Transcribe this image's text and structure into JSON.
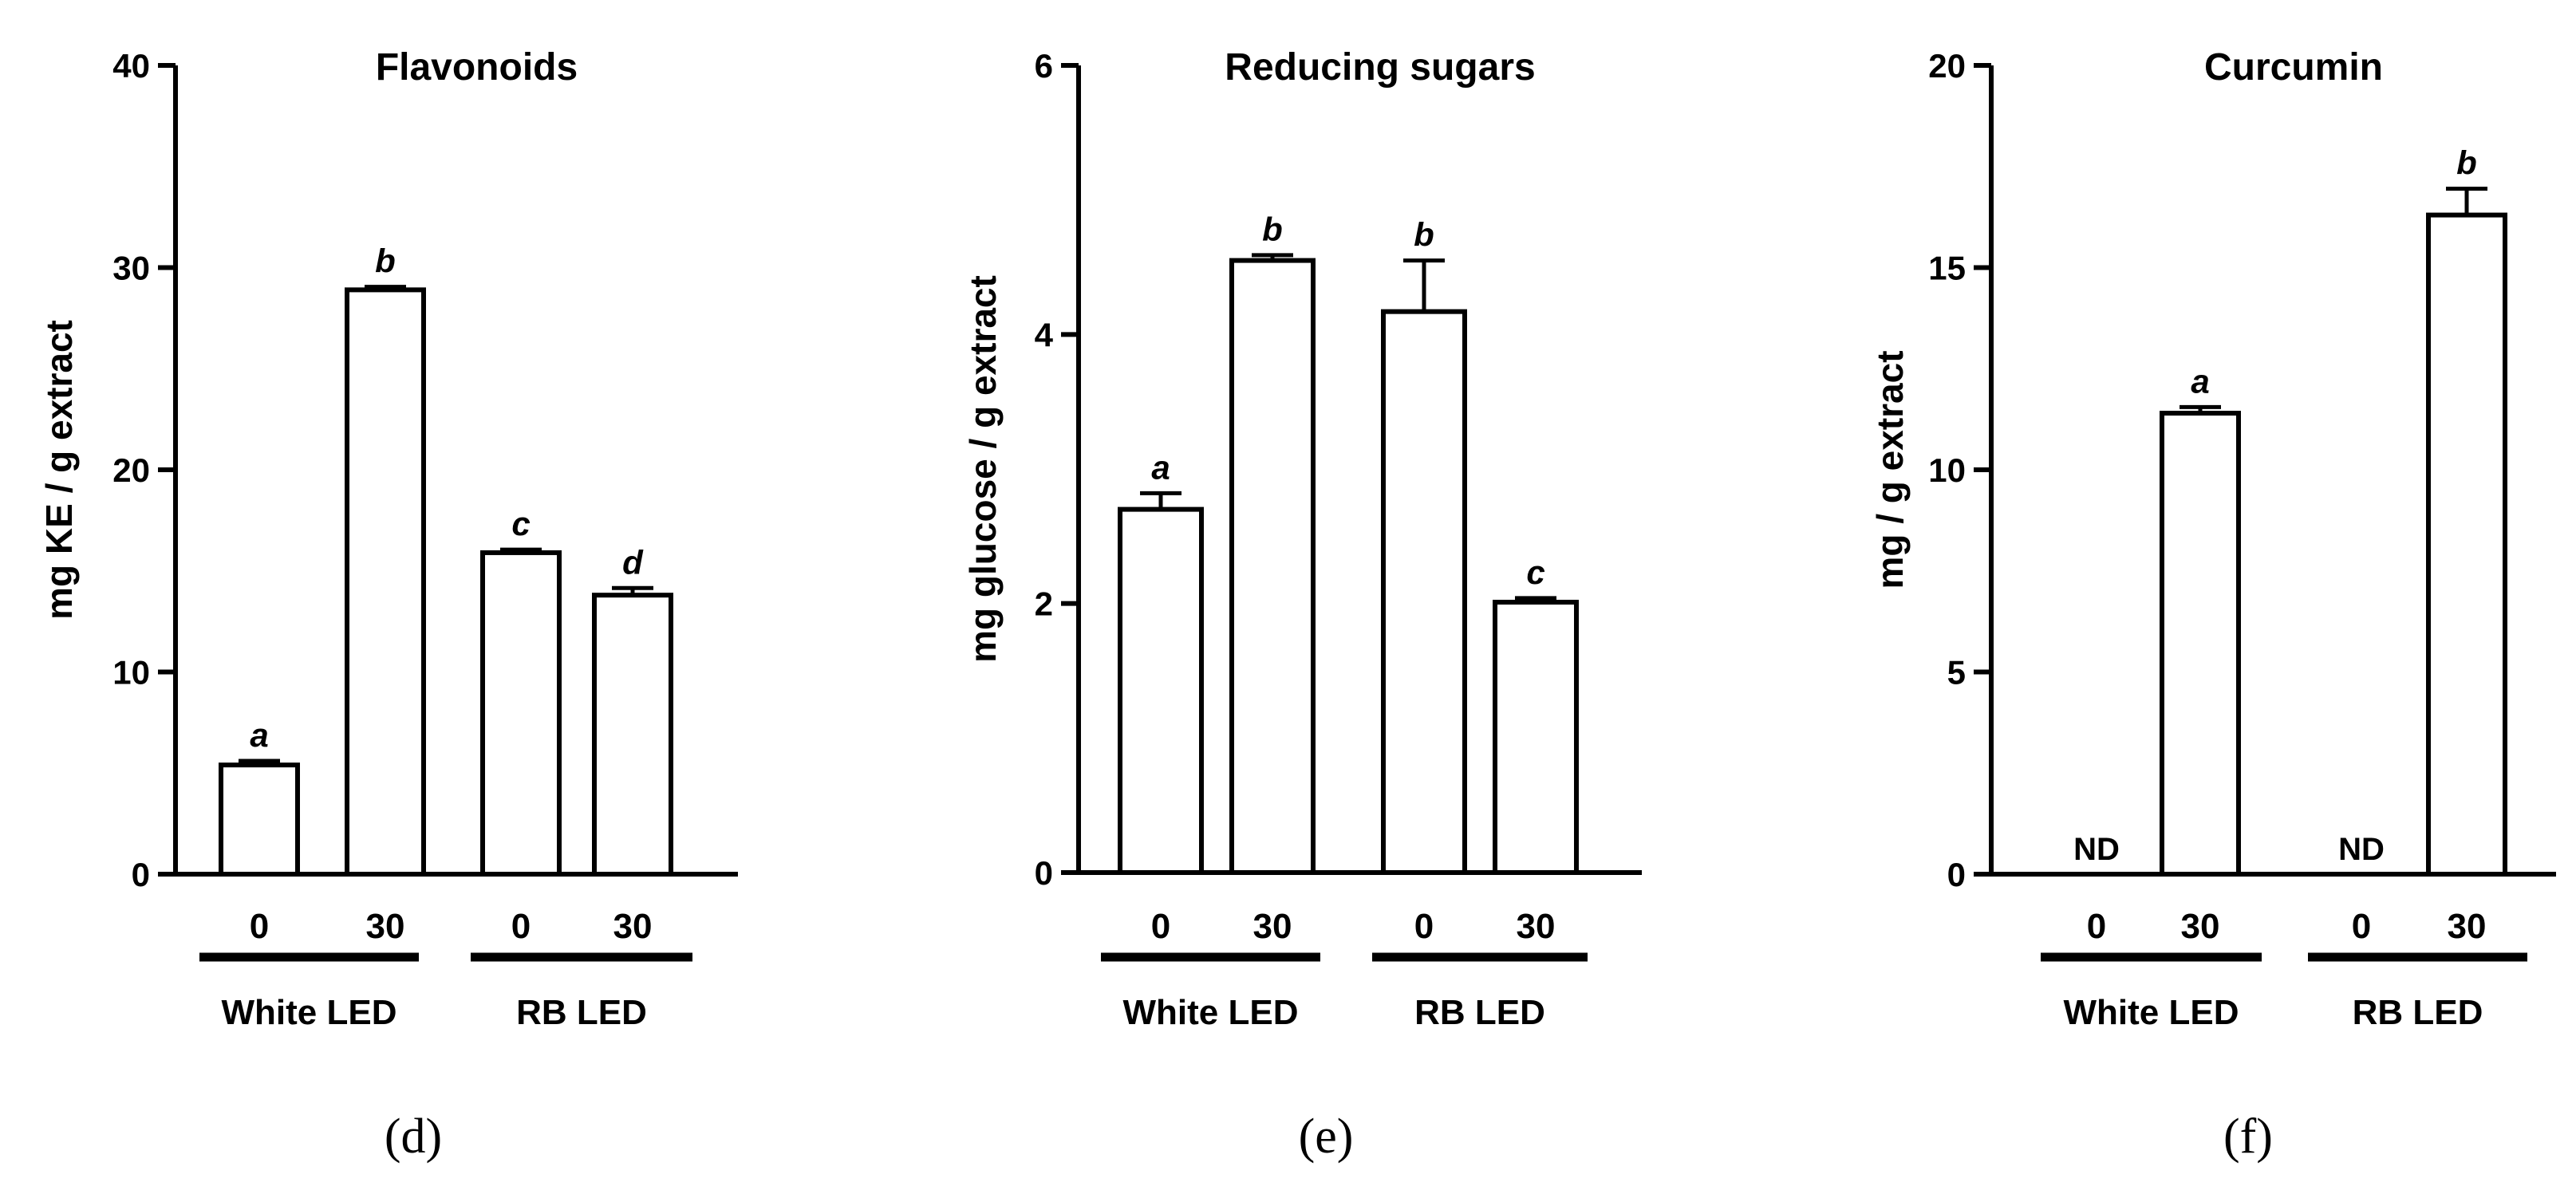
{
  "chart_data": [
    {
      "type": "bar",
      "title": "Flavonoids",
      "ylabel": "mg KE / g extract",
      "ylim": [
        0,
        40
      ],
      "yticks": [
        0,
        10,
        20,
        30,
        40
      ],
      "panel_label": "(d)",
      "categories": [
        "0",
        "30",
        "0",
        "30"
      ],
      "groups": [
        {
          "name": "White LED",
          "bars": [
            0,
            1
          ]
        },
        {
          "name": "RB LED",
          "bars": [
            2,
            3
          ]
        }
      ],
      "values": [
        5.4,
        28.9,
        15.9,
        13.8
      ],
      "errors": [
        0.2,
        0.15,
        0.15,
        0.35
      ],
      "letters": [
        "a",
        "b",
        "c",
        "d"
      ]
    },
    {
      "type": "bar",
      "title": "Reducing sugars",
      "ylabel": "mg glucose / g extract",
      "ylim": [
        0,
        6
      ],
      "yticks": [
        0,
        2,
        4,
        6
      ],
      "panel_label": "(e)",
      "categories": [
        "0",
        "30",
        "0",
        "30"
      ],
      "groups": [
        {
          "name": "White LED",
          "bars": [
            0,
            1
          ]
        },
        {
          "name": "RB LED",
          "bars": [
            2,
            3
          ]
        }
      ],
      "values": [
        2.7,
        4.55,
        4.17,
        2.01
      ],
      "errors": [
        0.12,
        0.04,
        0.38,
        0.03
      ],
      "letters": [
        "a",
        "b",
        "b",
        "c"
      ]
    },
    {
      "type": "bar",
      "title": "Curcumin",
      "ylabel": "mg / g extract",
      "ylim": [
        0,
        20
      ],
      "yticks": [
        0,
        5,
        10,
        15,
        20
      ],
      "panel_label": "(f)",
      "categories": [
        "0",
        "30",
        "0",
        "30"
      ],
      "groups": [
        {
          "name": "White LED",
          "bars": [
            0,
            1
          ]
        },
        {
          "name": "RB LED",
          "bars": [
            2,
            3
          ]
        }
      ],
      "values": [
        null,
        11.4,
        null,
        16.3
      ],
      "errors": [
        null,
        0.15,
        null,
        0.65
      ],
      "letters": [
        "ND",
        "a",
        "ND",
        "b"
      ]
    }
  ]
}
